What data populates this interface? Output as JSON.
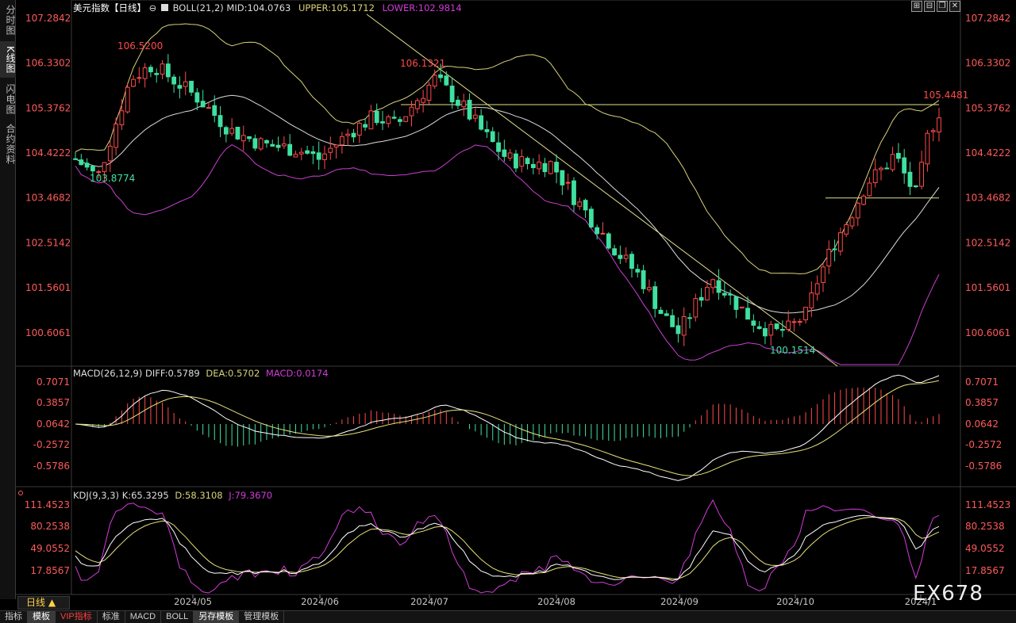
{
  "rail_tabs": [
    {
      "label": "分时图",
      "active": false
    },
    {
      "label": "K线图",
      "active": true
    },
    {
      "label": "闪电图",
      "active": false
    },
    {
      "label": "合约资料",
      "active": false
    }
  ],
  "header": {
    "title": "美元指数【日线】",
    "boll_label": "BOLL(21,2)",
    "mid": "MID:104.0763",
    "upper": "UPPER:105.1712",
    "lower": "LOWER:102.9814"
  },
  "macd_header": {
    "label": "MACD(26,12,9)",
    "diff": "DIFF:0.5789",
    "dea": "DEA:0.5702",
    "macd": "MACD:0.0174"
  },
  "kdj_header": {
    "label": "KDJ(9,3,3)",
    "k": "K:65.3295",
    "d": "D:58.3108",
    "j": "J:79.3670"
  },
  "price_axis": [
    "107.2842",
    "106.3302",
    "105.3762",
    "104.4222",
    "103.4682",
    "102.5142",
    "101.5601",
    "100.6061"
  ],
  "macd_axis": [
    "0.7071",
    "0.3857",
    "0.0642",
    "-0.2572",
    "-0.5786"
  ],
  "kdj_axis": [
    "111.4523",
    "80.2538",
    "49.0552",
    "17.8567"
  ],
  "date_axis": [
    "2024/05",
    "2024/06",
    "2024/07",
    "2024/08",
    "2024/09",
    "2024/10",
    "2024/1"
  ],
  "annotations": {
    "high1": "106.5200",
    "high2": "106.1321",
    "low1": "103.8774",
    "low2": "100.1514",
    "recent_high": "105.4481"
  },
  "period_button": "日线 ▲",
  "bottom_tabs": [
    {
      "label": "指标",
      "active": false,
      "vip": false
    },
    {
      "label": "模板",
      "active": true,
      "vip": false
    },
    {
      "label": "VIP指标",
      "active": false,
      "vip": true
    },
    {
      "label": "标准",
      "active": false,
      "vip": false
    },
    {
      "label": "MACD",
      "active": false,
      "vip": false
    },
    {
      "label": "BOLL",
      "active": false,
      "vip": false
    },
    {
      "label": "另存模板",
      "active": true,
      "vip": false
    },
    {
      "label": "管理模板",
      "active": false,
      "vip": false
    }
  ],
  "watermark": "EX678",
  "colors": {
    "up": "#ff4a4a",
    "down": "#3fe0a0",
    "boll_mid": "#dcdcdc",
    "boll_upper": "#d8d27a",
    "boll_lower": "#c93fd0",
    "trend": "#e3df8a",
    "macd_diff": "#ffffff",
    "macd_dea": "#e8e27a",
    "kdj_k": "#ffffff",
    "kdj_d": "#e8e27a",
    "kdj_j": "#d23bd8",
    "axis_text": "#ff5a5a",
    "grid": "#3a3a3a"
  },
  "chart_data": {
    "type": "candlestick",
    "series": [
      {
        "name": "BOLL",
        "values": {
          "MID": 104.0763,
          "UPPER": 105.1712,
          "LOWER": 102.9814
        }
      },
      {
        "name": "MACD",
        "values": {
          "DIFF": 0.5789,
          "DEA": 0.5702,
          "MACD": 0.0174
        }
      },
      {
        "name": "KDJ",
        "values": {
          "K": 65.3295,
          "D": 58.3108,
          "J": 79.367
        }
      }
    ],
    "y_range_price": [
      100.0,
      107.6
    ],
    "horizontal_levels": [
      105.4481,
      103.4682
    ],
    "labeled_points": [
      106.52,
      106.1321,
      103.8774,
      100.1514,
      105.4481
    ]
  }
}
